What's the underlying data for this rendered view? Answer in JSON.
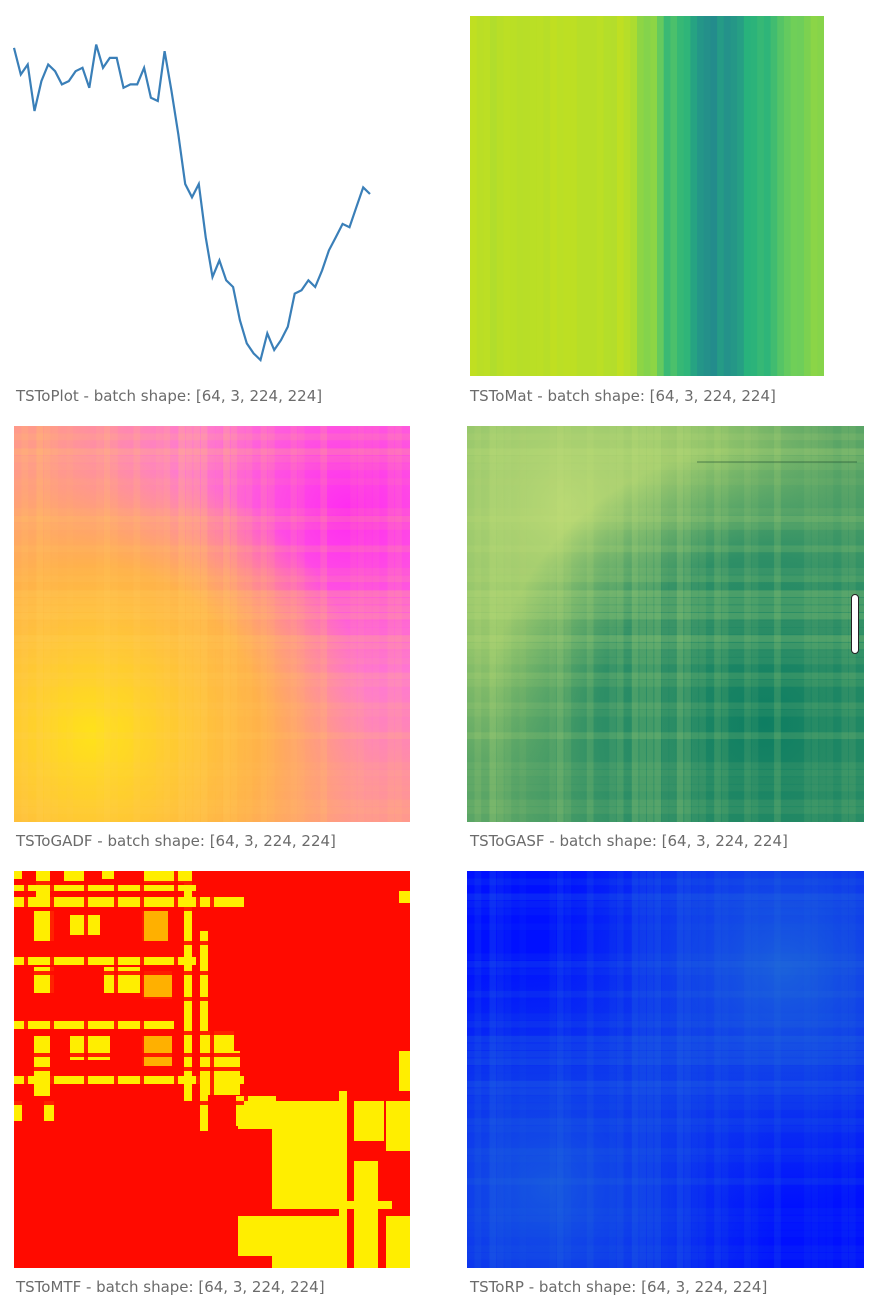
{
  "captions": {
    "plot": "TSToPlot - batch shape: [64, 3, 224, 224]",
    "mat": "TSToMat - batch shape: [64, 3, 224, 224]",
    "gadf": "TSToGADF - batch shape: [64, 3, 224, 224]",
    "gasf": "TSToGASF - batch shape: [64, 3, 224, 224]",
    "mtf": "TSToMTF - batch shape: [64, 3, 224, 224]",
    "rp": "TSToRP - batch shape: [64, 3, 224, 224]"
  },
  "series": [
    0.06,
    0.14,
    0.11,
    0.25,
    0.16,
    0.11,
    0.13,
    0.17,
    0.16,
    0.13,
    0.12,
    0.18,
    0.05,
    0.12,
    0.09,
    0.09,
    0.18,
    0.17,
    0.17,
    0.12,
    0.21,
    0.22,
    0.07,
    0.19,
    0.32,
    0.47,
    0.51,
    0.47,
    0.63,
    0.75,
    0.7,
    0.76,
    0.78,
    0.88,
    0.95,
    0.98,
    1.0,
    0.92,
    0.97,
    0.94,
    0.9,
    0.8,
    0.79,
    0.76,
    0.78,
    0.73,
    0.67,
    0.63,
    0.59,
    0.6,
    0.54,
    0.48,
    0.5
  ],
  "colors": {
    "line": "#3a7fb8",
    "caption": "#6b6b6b"
  }
}
